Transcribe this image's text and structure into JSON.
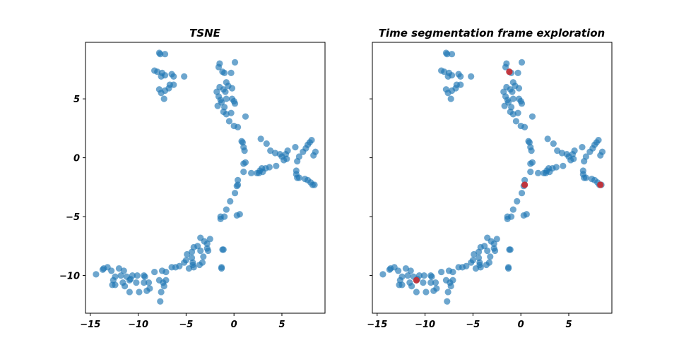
{
  "chart_data": [
    {
      "type": "scatter",
      "title": "TSNE",
      "xlim": [
        -15.5,
        9.5
      ],
      "ylim": [
        -13.2,
        9.8
      ],
      "xticks": [
        -15,
        -10,
        -5,
        0,
        5
      ],
      "yticks": [
        5,
        0,
        -5,
        -10
      ],
      "xticklabels": [
        "−15",
        "−10",
        "−5",
        "0",
        "5"
      ],
      "yticklabels": [
        "5",
        "0",
        "−5",
        "−10"
      ],
      "grid": false,
      "series": [
        {
          "color": "#1f77b4",
          "points": "base"
        }
      ]
    },
    {
      "type": "scatter",
      "title": "Time segmentation frame exploration",
      "xlim": [
        -15.5,
        9.5
      ],
      "ylim": [
        -13.2,
        9.8
      ],
      "xticks": [
        -15,
        -10,
        -5,
        0,
        5
      ],
      "yticks": [
        5,
        0,
        -5,
        -10
      ],
      "xticklabels": [
        "−15",
        "−10",
        "−5",
        "0",
        "5"
      ],
      "yticklabels": [],
      "grid": false,
      "series": [
        {
          "color": "#1f77b4",
          "points": "base"
        },
        {
          "color": "#d62728",
          "points": [
            [
              -1.2,
              7.3
            ],
            [
              0.4,
              -2.3
            ],
            [
              8.3,
              -2.3
            ],
            [
              -10.9,
              -10.4
            ]
          ]
        }
      ]
    }
  ],
  "points": [
    [
      -7.8,
      8.9
    ],
    [
      -7.7,
      8.8
    ],
    [
      -7.2,
      8.8
    ],
    [
      -8.3,
      7.4
    ],
    [
      -8.0,
      7.3
    ],
    [
      -7.5,
      7.2
    ],
    [
      -7.2,
      7.0
    ],
    [
      -7.6,
      6.9
    ],
    [
      -6.5,
      7.1
    ],
    [
      -6.3,
      6.9
    ],
    [
      -5.2,
      6.9
    ],
    [
      -6.7,
      6.2
    ],
    [
      -6.3,
      6.2
    ],
    [
      -6.8,
      5.9
    ],
    [
      -7.8,
      5.8
    ],
    [
      -7.2,
      5.7
    ],
    [
      -7.6,
      5.5
    ],
    [
      -7.3,
      5.0
    ],
    [
      -1.5,
      8.0
    ],
    [
      0.1,
      8.1
    ],
    [
      -1.6,
      7.7
    ],
    [
      -1.2,
      7.3
    ],
    [
      -1.0,
      7.2
    ],
    [
      -0.3,
      7.2
    ],
    [
      -0.8,
      6.4
    ],
    [
      -0.6,
      6.1
    ],
    [
      -1.5,
      6.0
    ],
    [
      -1.1,
      5.8
    ],
    [
      -0.2,
      5.9
    ],
    [
      -0.9,
      5.6
    ],
    [
      -1.8,
      5.6
    ],
    [
      -1.6,
      5.2
    ],
    [
      -1.4,
      4.9
    ],
    [
      -0.8,
      5.0
    ],
    [
      -0.2,
      5.0
    ],
    [
      0.0,
      4.8
    ],
    [
      -1.3,
      4.7
    ],
    [
      -1.7,
      4.4
    ],
    [
      -1.0,
      4.3
    ],
    [
      0.1,
      4.6
    ],
    [
      -0.3,
      3.8
    ],
    [
      -1.1,
      3.9
    ],
    [
      -0.8,
      3.7
    ],
    [
      1.2,
      3.5
    ],
    [
      -0.5,
      3.1
    ],
    [
      0.0,
      2.7
    ],
    [
      0.4,
      2.6
    ],
    [
      0.8,
      1.4
    ],
    [
      0.9,
      1.3
    ],
    [
      1.0,
      0.9
    ],
    [
      1.1,
      0.6
    ],
    [
      2.8,
      1.6
    ],
    [
      3.4,
      1.2
    ],
    [
      3.8,
      0.6
    ],
    [
      4.3,
      0.4
    ],
    [
      4.8,
      0.3
    ],
    [
      5.0,
      0.1
    ],
    [
      5.4,
      0.3
    ],
    [
      5.6,
      0.6
    ],
    [
      6.4,
      0.9
    ],
    [
      5.5,
      -0.1
    ],
    [
      5.2,
      -0.2
    ],
    [
      7.2,
      0.5
    ],
    [
      7.5,
      0.8
    ],
    [
      7.7,
      1.1
    ],
    [
      7.9,
      1.3
    ],
    [
      8.1,
      1.5
    ],
    [
      6.8,
      0.1
    ],
    [
      6.6,
      -0.3
    ],
    [
      8.3,
      0.2
    ],
    [
      8.5,
      0.5
    ],
    [
      6.5,
      -1.1
    ],
    [
      6.5,
      -1.4
    ],
    [
      6.8,
      -1.7
    ],
    [
      7.4,
      -1.8
    ],
    [
      7.7,
      -1.9
    ],
    [
      8.0,
      -2.1
    ],
    [
      8.2,
      -2.3
    ],
    [
      8.4,
      -2.3
    ],
    [
      6.6,
      -1.7
    ],
    [
      2.6,
      -1.3
    ],
    [
      3.0,
      -1.2
    ],
    [
      3.3,
      -0.9
    ],
    [
      3.7,
      -0.8
    ],
    [
      4.4,
      -0.7
    ],
    [
      2.9,
      -0.9
    ],
    [
      2.7,
      -1.1
    ],
    [
      2.4,
      -1.3
    ],
    [
      1.8,
      -1.3
    ],
    [
      1.2,
      -0.4
    ],
    [
      1.0,
      -0.5
    ],
    [
      1.0,
      -1.2
    ],
    [
      0.4,
      -1.9
    ],
    [
      0.4,
      -2.3
    ],
    [
      0.3,
      -2.4
    ],
    [
      0.1,
      -3.0
    ],
    [
      -0.4,
      -3.7
    ],
    [
      -0.8,
      -4.4
    ],
    [
      0.6,
      -4.8
    ],
    [
      0.3,
      -4.9
    ],
    [
      -1.0,
      -5.0
    ],
    [
      -1.4,
      -5.2
    ],
    [
      -1.4,
      -5.0
    ],
    [
      -1.2,
      -7.8
    ],
    [
      -1.1,
      -7.8
    ],
    [
      -1.3,
      -9.3
    ],
    [
      -1.3,
      -9.4
    ],
    [
      -3.5,
      -6.8
    ],
    [
      -2.5,
      -6.9
    ],
    [
      -3.1,
      -7.1
    ],
    [
      -2.8,
      -7.3
    ],
    [
      -2.8,
      -7.7
    ],
    [
      -3.8,
      -7.5
    ],
    [
      -4.2,
      -7.6
    ],
    [
      -3.5,
      -7.9
    ],
    [
      -2.7,
      -7.9
    ],
    [
      -4.4,
      -8.0
    ],
    [
      -4.9,
      -8.2
    ],
    [
      -3.2,
      -8.4
    ],
    [
      -4.4,
      -8.5
    ],
    [
      -5.0,
      -8.7
    ],
    [
      -3.3,
      -8.9
    ],
    [
      -4.3,
      -8.9
    ],
    [
      -5.2,
      -8.9
    ],
    [
      -3.6,
      -9.1
    ],
    [
      -4.3,
      -9.1
    ],
    [
      -4.7,
      -9.4
    ],
    [
      -4.2,
      -9.3
    ],
    [
      -5.7,
      -9.2
    ],
    [
      -6.1,
      -9.3
    ],
    [
      -6.5,
      -9.3
    ],
    [
      -7.5,
      -9.6
    ],
    [
      -7.1,
      -9.7
    ],
    [
      -8.3,
      -9.7
    ],
    [
      -9.4,
      -10.0
    ],
    [
      -9.3,
      -10.1
    ],
    [
      -10.1,
      -10.0
    ],
    [
      -10.6,
      -10.0
    ],
    [
      -11.2,
      -10.1
    ],
    [
      -10.8,
      -10.3
    ],
    [
      -10.9,
      -10.4
    ],
    [
      -11.8,
      -10.0
    ],
    [
      -12.4,
      -10.1
    ],
    [
      -12.8,
      -9.6
    ],
    [
      -13.2,
      -9.3
    ],
    [
      -13.6,
      -9.4
    ],
    [
      -13.7,
      -9.5
    ],
    [
      -14.4,
      -9.9
    ],
    [
      -11.5,
      -9.6
    ],
    [
      -12.0,
      -9.4
    ],
    [
      -12.6,
      -10.4
    ],
    [
      -12.7,
      -10.8
    ],
    [
      -12.4,
      -10.8
    ],
    [
      -11.4,
      -10.9
    ],
    [
      -11.6,
      -10.6
    ],
    [
      -9.4,
      -10.6
    ],
    [
      -10.2,
      -10.6
    ],
    [
      -8.9,
      -10.6
    ],
    [
      -7.8,
      -10.4
    ],
    [
      -7.1,
      -10.4
    ],
    [
      -7.4,
      -10.6
    ],
    [
      -7.3,
      -10.9
    ],
    [
      -8.8,
      -11.1
    ],
    [
      -9.9,
      -11.4
    ],
    [
      -10.9,
      -11.4
    ],
    [
      -9.1,
      -11.3
    ],
    [
      -7.6,
      -11.4
    ],
    [
      -7.7,
      -12.2
    ]
  ]
}
